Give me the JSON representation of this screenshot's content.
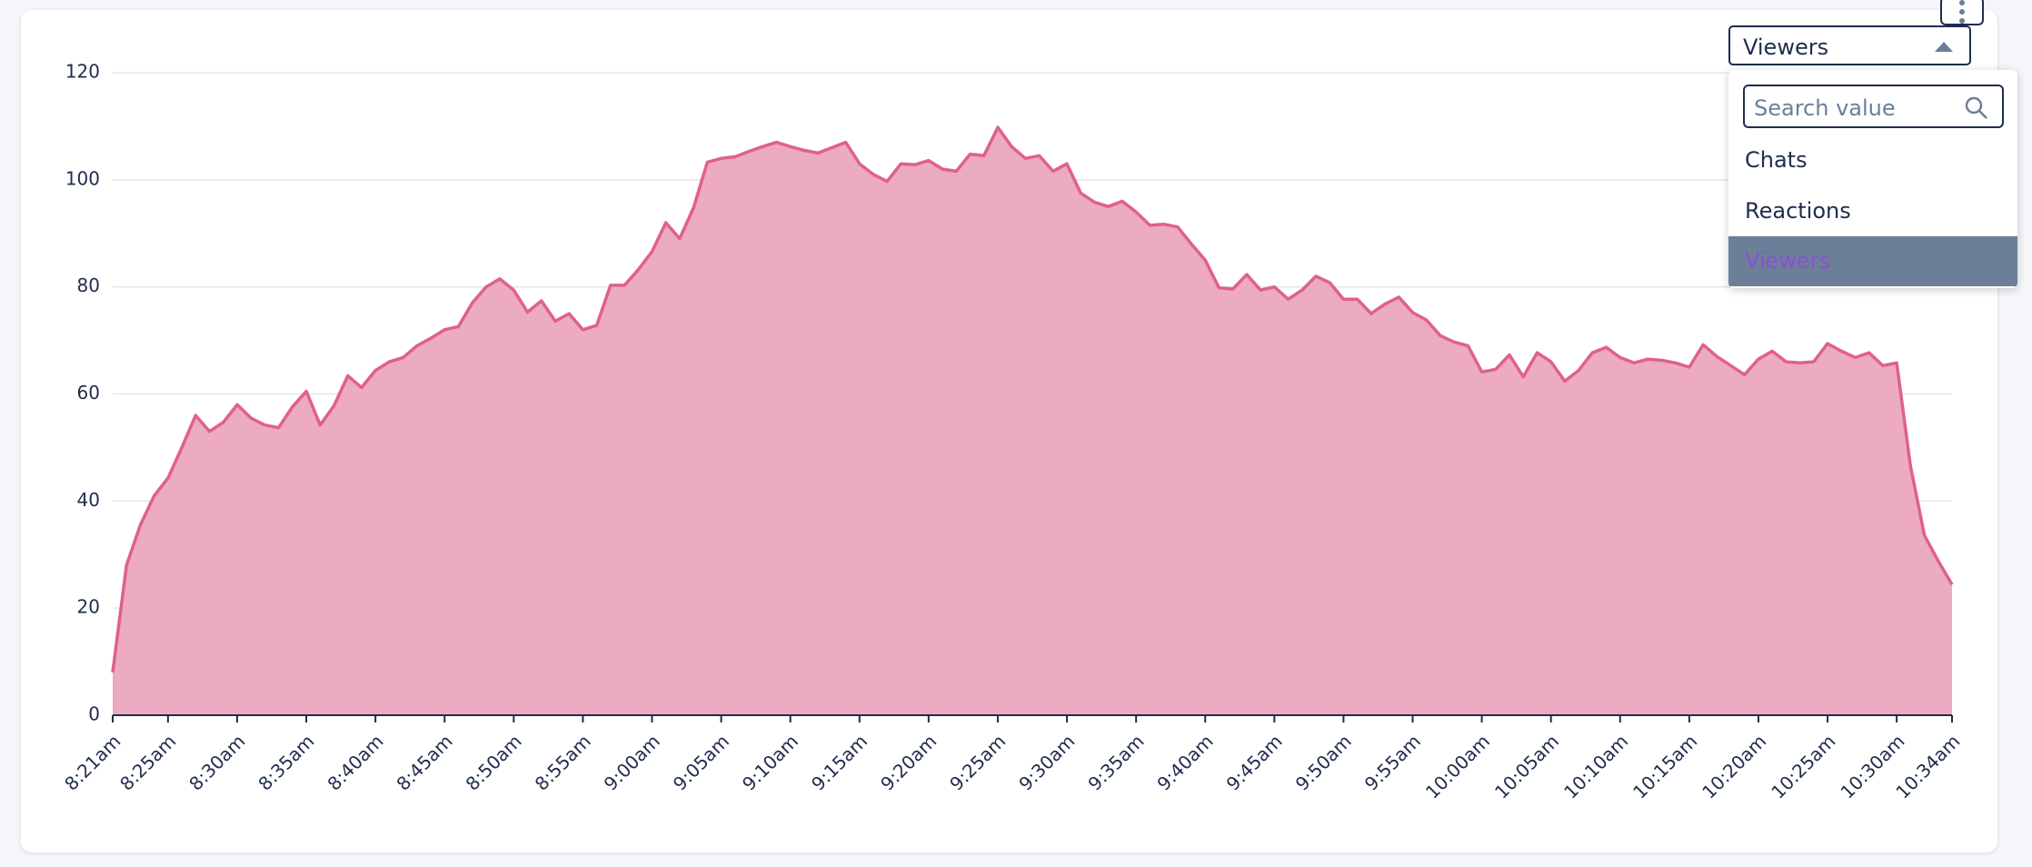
{
  "chart_data": {
    "type": "area",
    "categories": [
      "8:21am",
      null,
      null,
      null,
      "8:25am",
      null,
      null,
      null,
      null,
      "8:30am",
      null,
      null,
      null,
      null,
      "8:35am",
      null,
      null,
      null,
      null,
      "8:40am",
      null,
      null,
      null,
      null,
      "8:45am",
      null,
      null,
      null,
      null,
      "8:50am",
      null,
      null,
      null,
      null,
      "8:55am",
      null,
      null,
      null,
      null,
      "9:00am",
      null,
      null,
      null,
      null,
      "9:05am",
      null,
      null,
      null,
      null,
      "9:10am",
      null,
      null,
      null,
      null,
      "9:15am",
      null,
      null,
      null,
      null,
      "9:20am",
      null,
      null,
      null,
      null,
      "9:25am",
      null,
      null,
      null,
      null,
      "9:30am",
      null,
      null,
      null,
      null,
      "9:35am",
      null,
      null,
      null,
      null,
      "9:40am",
      null,
      null,
      null,
      null,
      "9:45am",
      null,
      null,
      null,
      null,
      "9:50am",
      null,
      null,
      null,
      null,
      "9:55am",
      null,
      null,
      null,
      null,
      "10:00am",
      null,
      null,
      null,
      null,
      "10:05am",
      null,
      null,
      null,
      null,
      "10:10am",
      null,
      null,
      null,
      null,
      "10:15am",
      null,
      null,
      null,
      null,
      "10:20am",
      null,
      null,
      null,
      null,
      "10:25am",
      null,
      null,
      null,
      null,
      "10:30am",
      null,
      null,
      null,
      "10:34am"
    ],
    "values": [
      8,
      28,
      35.5,
      41,
      44.3,
      50,
      56,
      53,
      54.7,
      58,
      55.5,
      54.2,
      53.7,
      57.6,
      60.5,
      54.2,
      57.8,
      63.4,
      61.2,
      64.4,
      66,
      66.8,
      69,
      70.4,
      72,
      72.6,
      77,
      80,
      81.5,
      79.4,
      75.3,
      77.4,
      73.6,
      75,
      72,
      72.8,
      80.3,
      80.3,
      83.2,
      86.6,
      92,
      89,
      94.8,
      103.3,
      104,
      104.3,
      105.3,
      106.2,
      107,
      106.2,
      105.5,
      105,
      106,
      107,
      103,
      101,
      99.7,
      103,
      102.8,
      103.6,
      102,
      101.6,
      104.8,
      104.5,
      109.8,
      106.2,
      104,
      104.5,
      101.6,
      103,
      97.5,
      95.8,
      95,
      96,
      94,
      91.5,
      91.7,
      91.2,
      88,
      85,
      79.8,
      79.6,
      82.3,
      79.4,
      80,
      77.7,
      79.4,
      82,
      80.8,
      77.7,
      77.7,
      75,
      76.8,
      78.1,
      75.2,
      73.8,
      70.9,
      69.7,
      69,
      64.1,
      64.6,
      67.3,
      63.2,
      67.7,
      66,
      62.4,
      64.4,
      67.7,
      68.7,
      66.8,
      65.8,
      66.5,
      66.3,
      65.8,
      65,
      69.2,
      67,
      65.3,
      63.6,
      66.5,
      68,
      66,
      65.8,
      66,
      69.4,
      68,
      66.8,
      67.7,
      65.3,
      65.8,
      46.5,
      33.6,
      28.8,
      24.4
    ],
    "color": "#e0608c",
    "fill_color": "#ecaac3",
    "ylim": [
      0,
      120
    ],
    "yticks": [
      0,
      20,
      40,
      60,
      80,
      100,
      120
    ],
    "grid": true
  },
  "controls": {
    "select_value": "Viewers",
    "search_placeholder": "Search value",
    "options": [
      "Chats",
      "Reactions",
      "Viewers"
    ],
    "selected": 2
  }
}
